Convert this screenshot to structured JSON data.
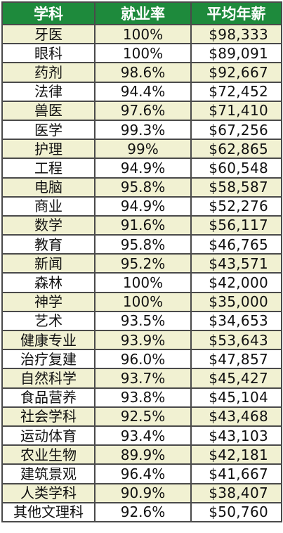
{
  "headers": {
    "major": "学科",
    "employment_rate": "就业率",
    "avg_salary": "平均年薪"
  },
  "rows": [
    {
      "major": "牙医",
      "rate": "100%",
      "salary": "$98,333"
    },
    {
      "major": "眼科",
      "rate": "100%",
      "salary": "$89,091"
    },
    {
      "major": "药剂",
      "rate": "98.6%",
      "salary": "$92,667"
    },
    {
      "major": "法律",
      "rate": "94.4%",
      "salary": "$72,452"
    },
    {
      "major": "兽医",
      "rate": "97.6%",
      "salary": "$71,410"
    },
    {
      "major": "医学",
      "rate": "99.3%",
      "salary": "$67,256"
    },
    {
      "major": "护理",
      "rate": "99%",
      "salary": "$62,865"
    },
    {
      "major": "工程",
      "rate": "94.9%",
      "salary": "$60,548"
    },
    {
      "major": "电脑",
      "rate": "95.8%",
      "salary": "$58,587"
    },
    {
      "major": "商业",
      "rate": "94.9%",
      "salary": "$52,276"
    },
    {
      "major": "数学",
      "rate": "91.6%",
      "salary": "$56,117"
    },
    {
      "major": "教育",
      "rate": "95.8%",
      "salary": "$46,765"
    },
    {
      "major": "新闻",
      "rate": "95.2%",
      "salary": "$43,571"
    },
    {
      "major": "森林",
      "rate": "100%",
      "salary": "$42,000"
    },
    {
      "major": "神学",
      "rate": "100%",
      "salary": "$35,000"
    },
    {
      "major": "艺术",
      "rate": "93.5%",
      "salary": "$34,653"
    },
    {
      "major": "健康专业",
      "rate": "93.9%",
      "salary": "$53,643"
    },
    {
      "major": "治疗复建",
      "rate": "96.0%",
      "salary": "$47,857"
    },
    {
      "major": "自然科学",
      "rate": "93.7%",
      "salary": "$45,427"
    },
    {
      "major": "食品营养",
      "rate": "93.8%",
      "salary": "$45,104"
    },
    {
      "major": "社会学科",
      "rate": "92.5%",
      "salary": "$43,468"
    },
    {
      "major": "运动体育",
      "rate": "93.4%",
      "salary": "$43,103"
    },
    {
      "major": "农业生物",
      "rate": "89.9%",
      "salary": "$42,181"
    },
    {
      "major": "建筑景观",
      "rate": "96.4%",
      "salary": "$41,667"
    },
    {
      "major": "人类学科",
      "rate": "90.9%",
      "salary": "$38,407"
    },
    {
      "major": "其他文理科",
      "rate": "92.6%",
      "salary": "$50,760"
    }
  ]
}
